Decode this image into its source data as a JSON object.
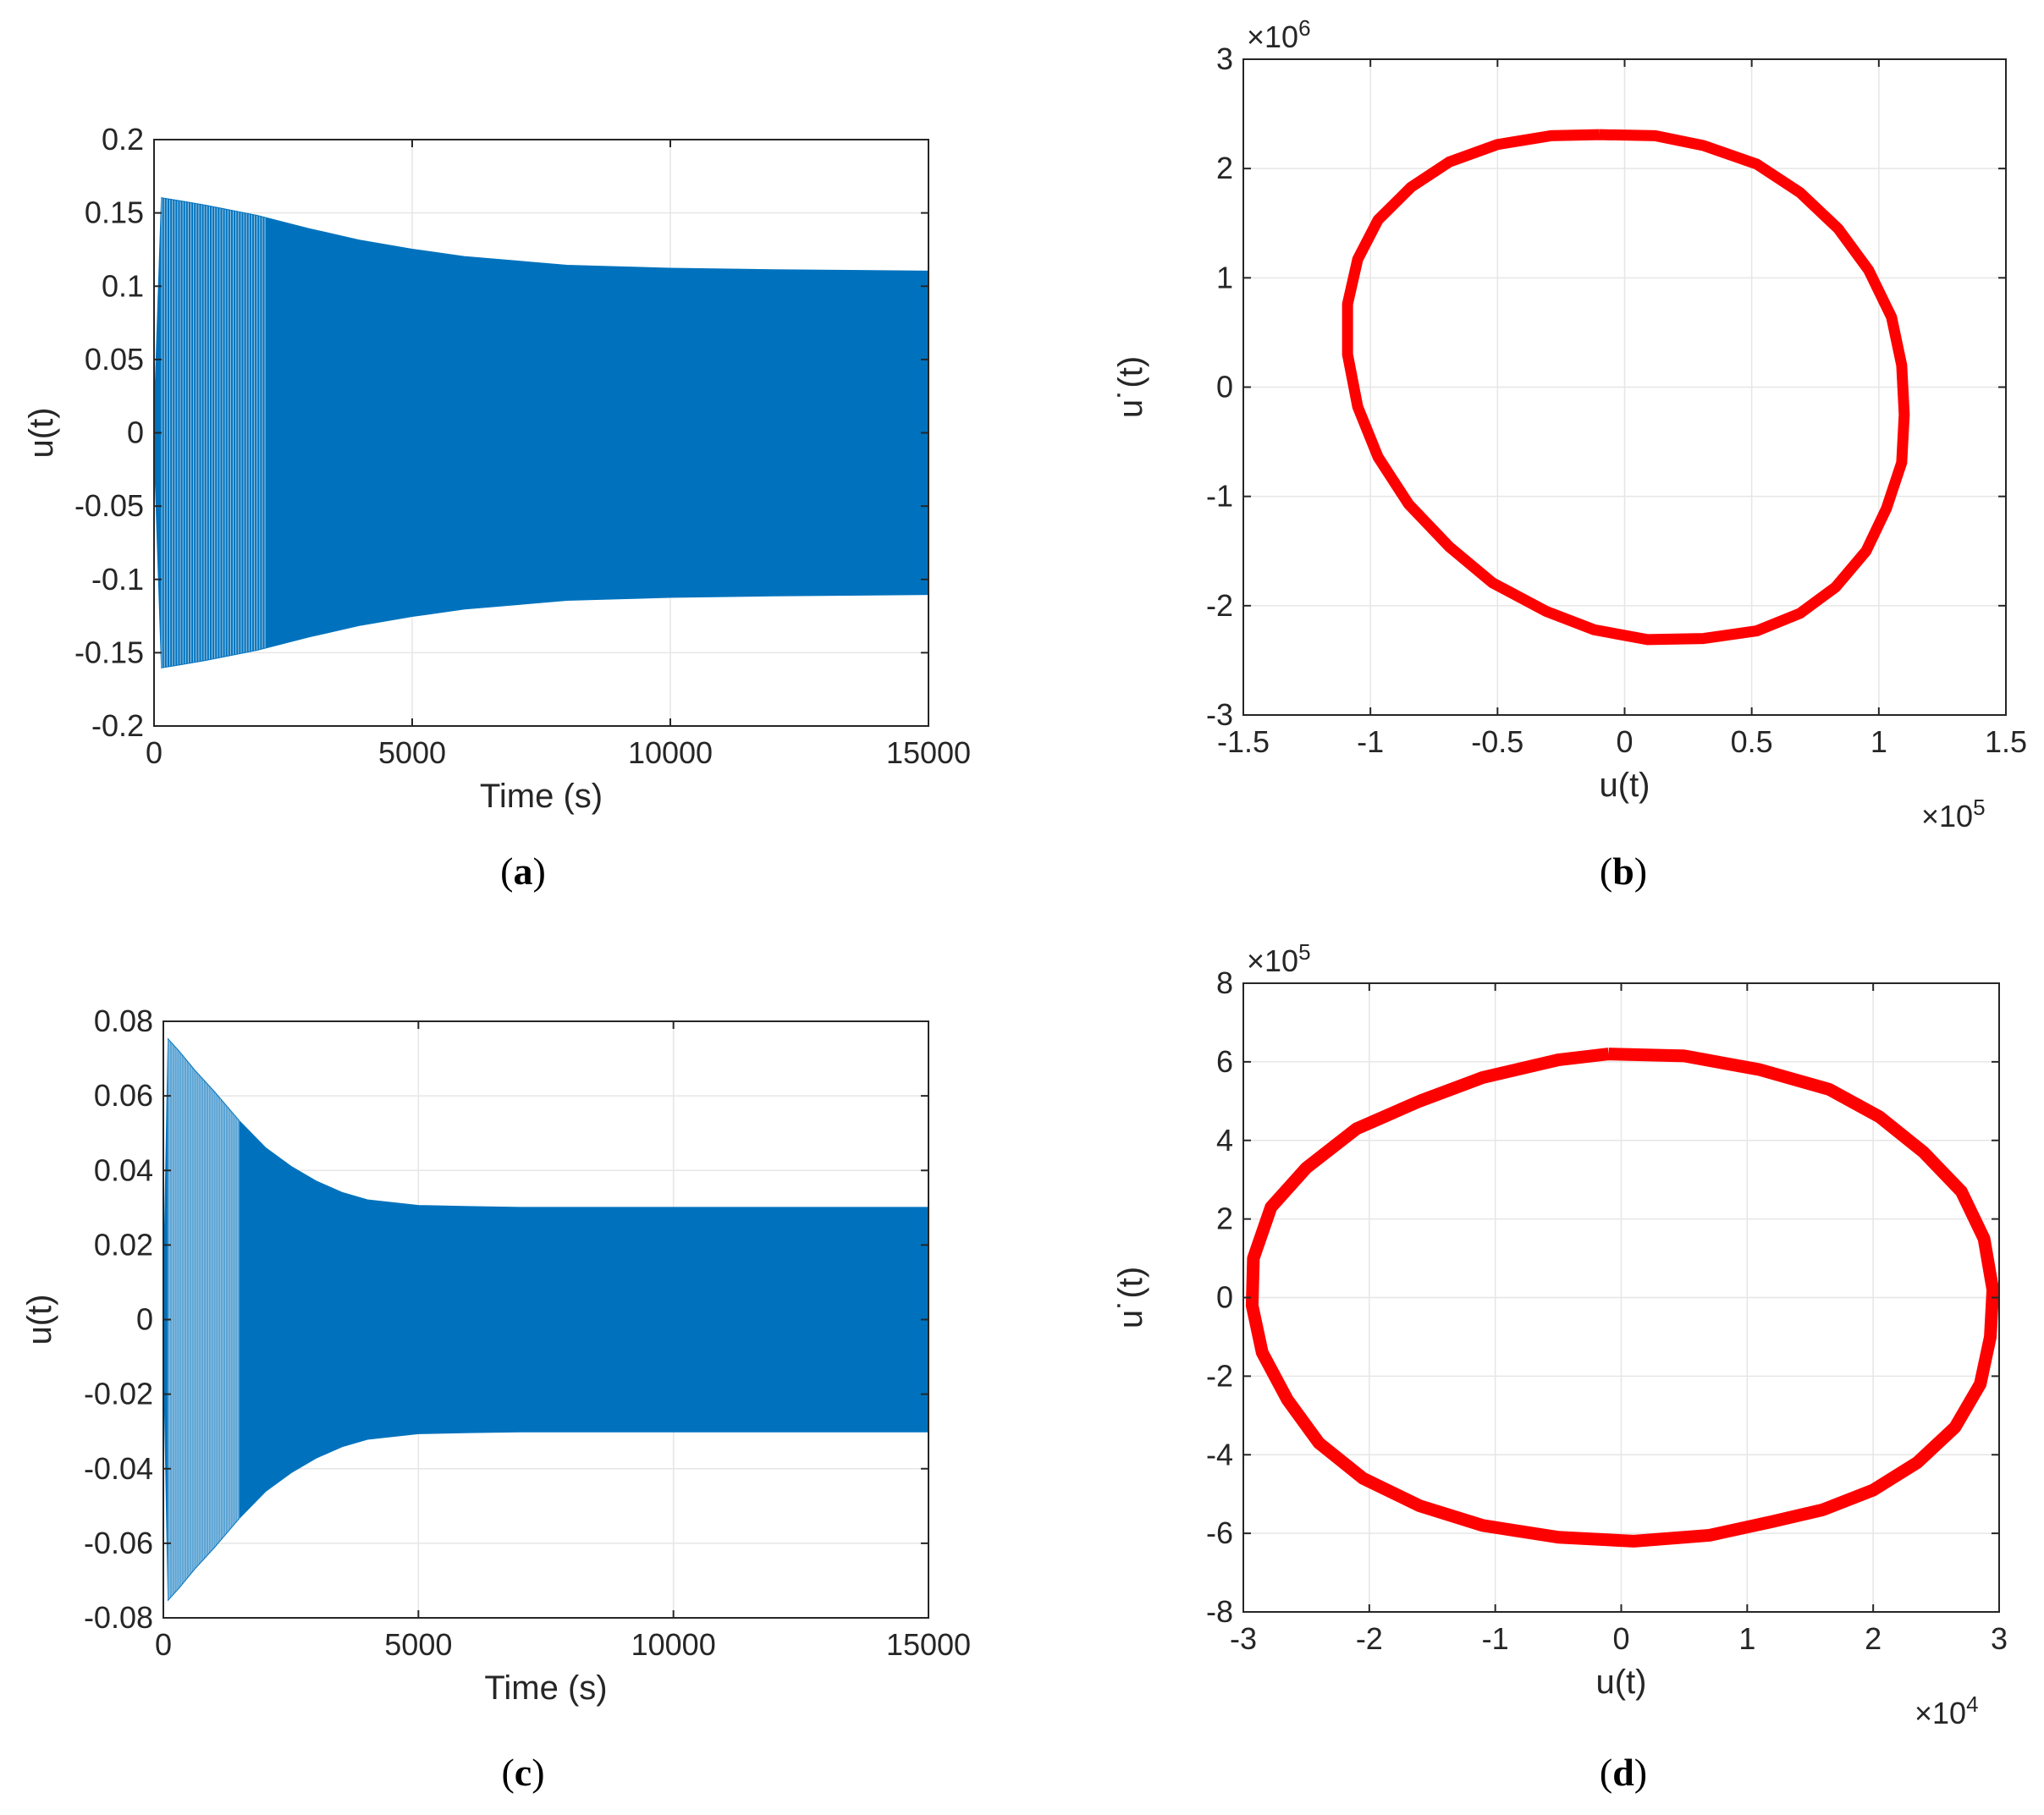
{
  "chart_data": [
    {
      "id": "a",
      "type": "line",
      "panel_label": "a",
      "xlabel": "Time (s)",
      "ylabel": "u(t)",
      "xlim": [
        0,
        15000
      ],
      "ylim": [
        -0.2,
        0.2
      ],
      "xticks": [
        0,
        5000,
        10000,
        15000
      ],
      "xtick_labels": [
        "0",
        "5000",
        "10000",
        "15000"
      ],
      "yticks": [
        0.2,
        0.15,
        0.1,
        0.05,
        0,
        -0.05,
        -0.1,
        -0.15,
        -0.2
      ],
      "ytick_labels": [
        "0.2",
        "0.15",
        "0.1",
        "0.05",
        "0",
        "-0.05",
        "-0.1",
        "-0.15",
        "-0.2"
      ],
      "grid": true,
      "color": "#0072BD",
      "series": [
        {
          "values_description_free": true,
          "envelope_upper": {
            "x": [
              0,
              150,
              500,
              1000,
              2000,
              3000,
              4000,
              5000,
              6000,
              7000,
              8000,
              9000,
              10000,
              12000,
              15000
            ],
            "y": [
              0.0,
              0.16,
              0.158,
              0.155,
              0.148,
              0.139,
              0.131,
              0.125,
              0.12,
              0.117,
              0.114,
              0.113,
              0.112,
              0.111,
              0.11
            ]
          },
          "envelope_lower": {
            "x": [
              0,
              150,
              500,
              1000,
              2000,
              3000,
              4000,
              5000,
              6000,
              7000,
              8000,
              9000,
              10000,
              12000,
              15000
            ],
            "y": [
              0.0,
              -0.16,
              -0.158,
              -0.155,
              -0.148,
              -0.139,
              -0.131,
              -0.125,
              -0.12,
              -0.117,
              -0.114,
              -0.113,
              -0.112,
              -0.111,
              -0.11
            ]
          }
        }
      ]
    },
    {
      "id": "b",
      "type": "line",
      "panel_label": "b",
      "xlabel": "u(t)",
      "ylabel": "u˙(t)",
      "xlim": [
        -1.5,
        1.5
      ],
      "ylim": [
        -3,
        3
      ],
      "x_exponent": "5",
      "y_exponent": "6",
      "xticks": [
        -1.5,
        -1,
        -0.5,
        0,
        0.5,
        1,
        1.5
      ],
      "xtick_labels": [
        "-1.5",
        "-1",
        "-0.5",
        "0",
        "0.5",
        "1",
        "1.5"
      ],
      "yticks": [
        3,
        2,
        1,
        0,
        -1,
        -2,
        -3
      ],
      "ytick_labels": [
        "3",
        "2",
        "1",
        "0",
        "-1",
        "-2",
        "-3"
      ],
      "grid": true,
      "color": "#FF0000",
      "series": [
        {
          "x": [
            -0.1,
            0.12,
            0.31,
            0.52,
            0.69,
            0.84,
            0.96,
            1.05,
            1.09,
            1.1,
            1.09,
            1.03,
            0.95,
            0.83,
            0.69,
            0.52,
            0.31,
            0.09,
            -0.12,
            -0.31,
            -0.52,
            -0.69,
            -0.85,
            -0.97,
            -1.05,
            -1.09,
            -1.09,
            -1.05,
            -0.97,
            -0.84,
            -0.69,
            -0.5,
            -0.29,
            -0.1
          ],
          "y": [
            2.31,
            2.3,
            2.21,
            2.04,
            1.78,
            1.45,
            1.07,
            0.64,
            0.2,
            -0.25,
            -0.69,
            -1.11,
            -1.5,
            -1.83,
            -2.07,
            -2.23,
            -2.3,
            -2.31,
            -2.22,
            -2.05,
            -1.79,
            -1.46,
            -1.07,
            -0.64,
            -0.18,
            0.3,
            0.76,
            1.17,
            1.53,
            1.83,
            2.06,
            2.22,
            2.3,
            2.31
          ]
        }
      ]
    },
    {
      "id": "c",
      "type": "line",
      "panel_label": "c",
      "xlabel": "Time (s)",
      "ylabel": "u(t)",
      "xlim": [
        0,
        15000
      ],
      "ylim": [
        -0.08,
        0.08
      ],
      "xticks": [
        0,
        5000,
        10000,
        15000
      ],
      "xtick_labels": [
        "0",
        "5000",
        "10000",
        "15000"
      ],
      "yticks": [
        0.08,
        0.06,
        0.04,
        0.02,
        0,
        -0.02,
        -0.04,
        -0.06,
        -0.08
      ],
      "ytick_labels": [
        "0.08",
        "0.06",
        "0.04",
        "0.02",
        "0",
        "-0.02",
        "-0.04",
        "-0.06",
        "-0.08"
      ],
      "grid": true,
      "color": "#0072BD",
      "series": [
        {
          "envelope_upper": {
            "x": [
              0,
              100,
              300,
              600,
              1000,
              1500,
              2000,
              2500,
              3000,
              3500,
              4000,
              5000,
              6000,
              7000,
              8000,
              10000,
              15000
            ],
            "y": [
              0.0,
              0.075,
              0.072,
              0.067,
              0.061,
              0.053,
              0.046,
              0.041,
              0.037,
              0.034,
              0.032,
              0.0305,
              0.0302,
              0.03,
              0.03,
              0.03,
              0.03
            ]
          },
          "envelope_lower": {
            "x": [
              0,
              100,
              300,
              600,
              1000,
              1500,
              2000,
              2500,
              3000,
              3500,
              4000,
              5000,
              6000,
              7000,
              8000,
              10000,
              15000
            ],
            "y": [
              0.0,
              -0.075,
              -0.072,
              -0.067,
              -0.061,
              -0.053,
              -0.046,
              -0.041,
              -0.037,
              -0.034,
              -0.032,
              -0.0305,
              -0.0302,
              -0.03,
              -0.03,
              -0.03,
              -0.03
            ]
          }
        }
      ]
    },
    {
      "id": "d",
      "type": "line",
      "panel_label": "d",
      "xlabel": "u(t)",
      "ylabel": "u˙(t)",
      "xlim": [
        -3,
        3
      ],
      "ylim": [
        -8,
        8
      ],
      "x_exponent": "4",
      "y_exponent": "5",
      "xticks": [
        -3,
        -2,
        -1,
        0,
        1,
        2,
        3
      ],
      "xtick_labels": [
        "-3",
        "-2",
        "-1",
        "0",
        "1",
        "2",
        "3"
      ],
      "yticks": [
        8,
        6,
        4,
        2,
        0,
        -2,
        -4,
        -6,
        -8
      ],
      "ytick_labels": [
        "8",
        "6",
        "4",
        "2",
        "0",
        "-2",
        "-4",
        "-6",
        "-8"
      ],
      "grid": true,
      "color": "#FF0000",
      "series": [
        {
          "x": [
            -0.1,
            0.5,
            1.1,
            1.65,
            2.05,
            2.4,
            2.7,
            2.88,
            2.95,
            2.93,
            2.85,
            2.65,
            2.35,
            2.0,
            1.6,
            1.2,
            0.7,
            0.1,
            -0.5,
            -1.1,
            -1.6,
            -2.05,
            -2.4,
            -2.65,
            -2.85,
            -2.93,
            -2.92,
            -2.78,
            -2.5,
            -2.1,
            -1.6,
            -1.1,
            -0.5,
            -0.1
          ],
          "y": [
            6.2,
            6.15,
            5.8,
            5.3,
            4.6,
            3.7,
            2.7,
            1.5,
            0.2,
            -1.0,
            -2.2,
            -3.3,
            -4.2,
            -4.9,
            -5.4,
            -5.7,
            -6.05,
            -6.2,
            -6.1,
            -5.8,
            -5.3,
            -4.6,
            -3.7,
            -2.6,
            -1.4,
            -0.2,
            1.0,
            2.3,
            3.3,
            4.3,
            5.0,
            5.6,
            6.05,
            6.2
          ]
        }
      ]
    }
  ]
}
